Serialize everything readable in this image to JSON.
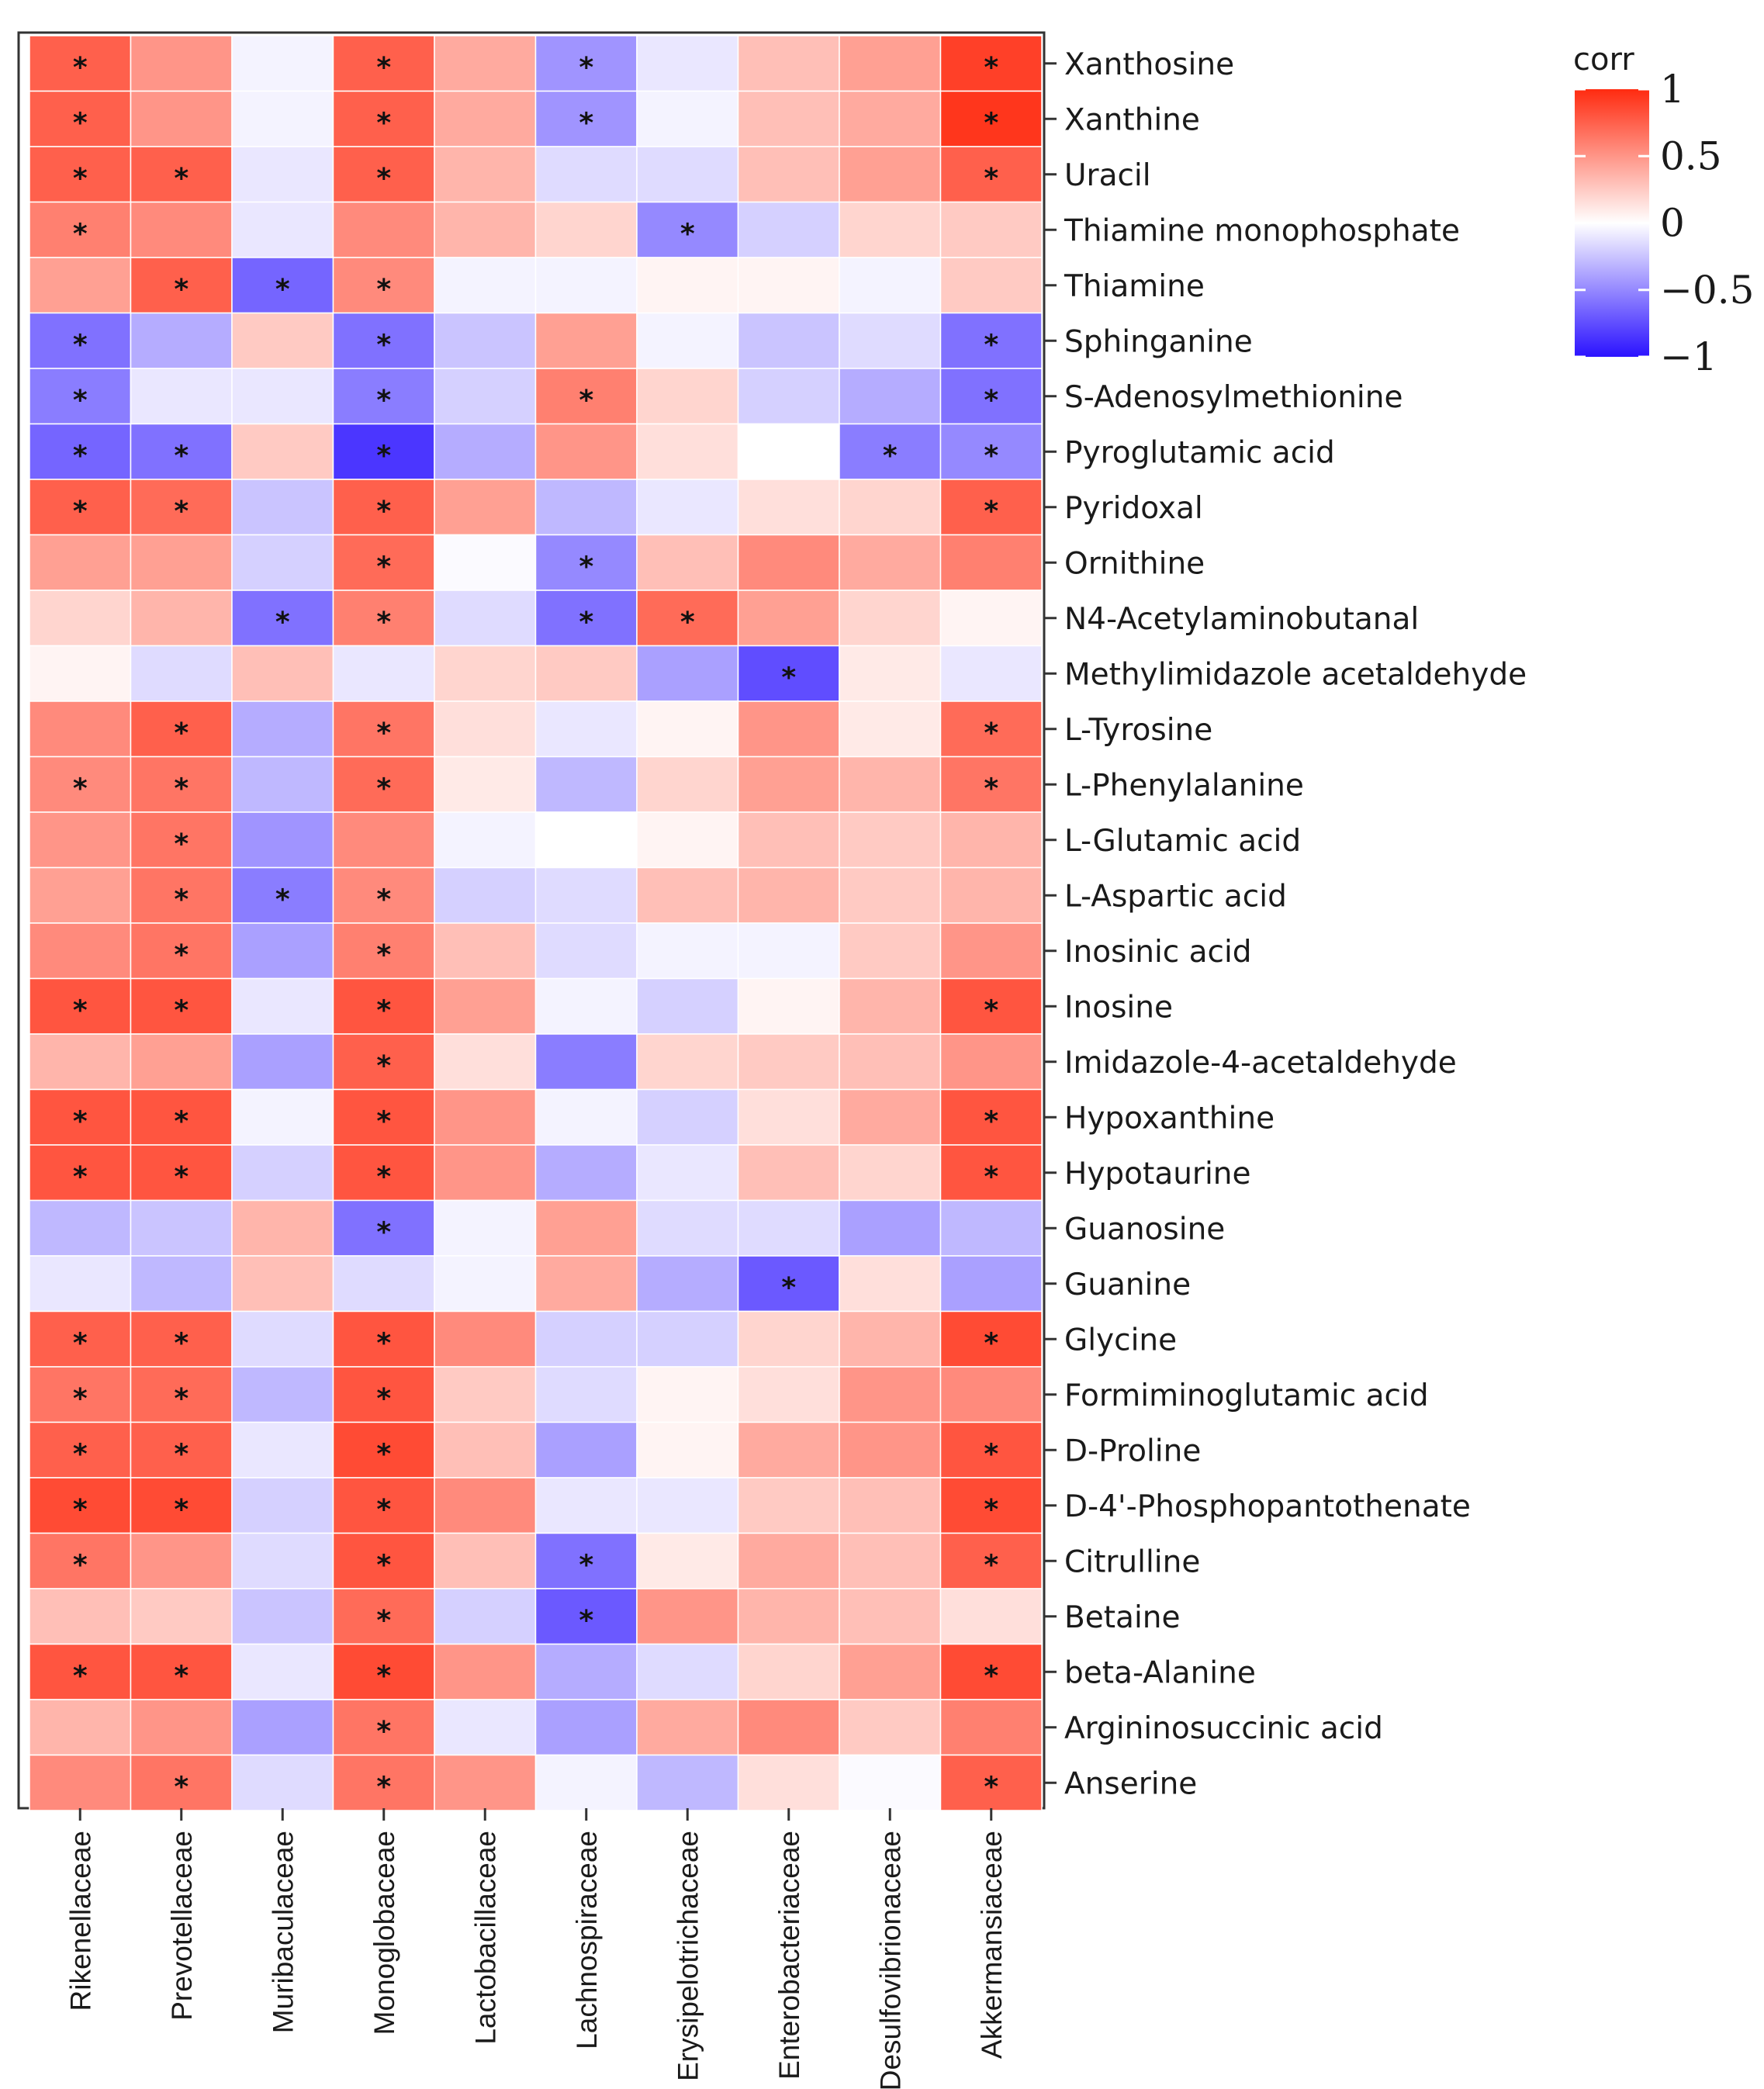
{
  "chart_data": {
    "type": "heatmap",
    "title": "",
    "legend_title": "corr",
    "legend_ticks": [
      "1",
      "0.5",
      "0",
      "−0.5",
      "−1"
    ],
    "legend_tick_values": [
      1,
      0.5,
      0,
      -0.5,
      -1
    ],
    "color_range": [
      -1,
      1
    ],
    "colors": {
      "low": "#2b12ff",
      "mid": "#ffffff",
      "high": "#ff2b10"
    },
    "columns": [
      "Rikenellaceae",
      "Prevotellaceae",
      "Muribaculaceae",
      "Monoglobaceae",
      "Lactobacillaceae",
      "Lachnospiraceae",
      "Erysipelotrichaceae",
      "Enterobacteriaceae",
      "Desulfovibrionaceae",
      "Akkermansiaceae"
    ],
    "rows": [
      {
        "name": "Xanthosine",
        "values": [
          0.75,
          0.5,
          -0.05,
          0.75,
          0.4,
          -0.45,
          -0.1,
          0.3,
          0.45,
          0.9
        ],
        "sig": [
          1,
          0,
          0,
          1,
          0,
          1,
          0,
          0,
          0,
          1
        ]
      },
      {
        "name": "Xanthine",
        "values": [
          0.75,
          0.5,
          -0.05,
          0.75,
          0.4,
          -0.45,
          -0.05,
          0.3,
          0.4,
          0.95
        ],
        "sig": [
          1,
          0,
          0,
          1,
          0,
          1,
          0,
          0,
          0,
          1
        ]
      },
      {
        "name": "Uracil",
        "values": [
          0.75,
          0.75,
          -0.1,
          0.75,
          0.35,
          -0.15,
          -0.15,
          0.3,
          0.45,
          0.75
        ],
        "sig": [
          1,
          1,
          0,
          1,
          0,
          0,
          0,
          0,
          0,
          1
        ]
      },
      {
        "name": "Thiamine monophosphate",
        "values": [
          0.6,
          0.55,
          -0.1,
          0.55,
          0.35,
          0.2,
          -0.5,
          -0.2,
          0.2,
          0.25
        ],
        "sig": [
          1,
          0,
          0,
          0,
          0,
          0,
          1,
          0,
          0,
          0
        ]
      },
      {
        "name": "Thiamine",
        "values": [
          0.45,
          0.75,
          -0.65,
          0.55,
          -0.05,
          -0.05,
          0.05,
          0.05,
          -0.05,
          0.25
        ],
        "sig": [
          0,
          1,
          1,
          1,
          0,
          0,
          0,
          0,
          0,
          0
        ]
      },
      {
        "name": "Sphinganine",
        "values": [
          -0.6,
          -0.35,
          0.25,
          -0.6,
          -0.25,
          0.45,
          -0.05,
          -0.25,
          -0.15,
          -0.6
        ],
        "sig": [
          1,
          0,
          0,
          1,
          0,
          0,
          0,
          0,
          0,
          1
        ]
      },
      {
        "name": "S-Adenosylmethionine",
        "values": [
          -0.55,
          -0.1,
          -0.1,
          -0.55,
          -0.2,
          0.6,
          0.2,
          -0.2,
          -0.35,
          -0.6
        ],
        "sig": [
          1,
          0,
          0,
          1,
          0,
          1,
          0,
          0,
          0,
          1
        ]
      },
      {
        "name": "Pyroglutamic acid",
        "values": [
          -0.65,
          -0.6,
          0.25,
          -0.85,
          -0.35,
          0.5,
          0.15,
          0.0,
          -0.55,
          -0.5
        ],
        "sig": [
          1,
          1,
          0,
          1,
          0,
          0,
          0,
          0,
          1,
          1
        ]
      },
      {
        "name": "Pyridoxal",
        "values": [
          0.75,
          0.7,
          -0.25,
          0.75,
          0.45,
          -0.3,
          -0.1,
          0.15,
          0.2,
          0.75
        ],
        "sig": [
          1,
          1,
          0,
          1,
          0,
          0,
          0,
          0,
          0,
          1
        ]
      },
      {
        "name": "Ornithine",
        "values": [
          0.45,
          0.45,
          -0.2,
          0.7,
          -0.02,
          -0.5,
          0.3,
          0.55,
          0.4,
          0.6
        ],
        "sig": [
          0,
          0,
          0,
          1,
          0,
          1,
          0,
          0,
          0,
          0
        ]
      },
      {
        "name": "N4-Acetylaminobutanal",
        "values": [
          0.2,
          0.35,
          -0.6,
          0.6,
          -0.15,
          -0.6,
          0.7,
          0.45,
          0.2,
          0.05
        ],
        "sig": [
          0,
          0,
          1,
          1,
          0,
          1,
          1,
          0,
          0,
          0
        ]
      },
      {
        "name": "Methylimidazole acetaldehyde",
        "values": [
          0.05,
          -0.15,
          0.3,
          -0.1,
          0.2,
          0.25,
          -0.4,
          -0.75,
          0.1,
          -0.1
        ],
        "sig": [
          0,
          0,
          0,
          0,
          0,
          0,
          0,
          1,
          0,
          0
        ]
      },
      {
        "name": "L-Tyrosine",
        "values": [
          0.55,
          0.75,
          -0.35,
          0.65,
          0.15,
          -0.1,
          0.05,
          0.5,
          0.1,
          0.7
        ],
        "sig": [
          0,
          1,
          0,
          1,
          0,
          0,
          0,
          0,
          0,
          1
        ]
      },
      {
        "name": "L-Phenylalanine",
        "values": [
          0.55,
          0.65,
          -0.3,
          0.7,
          0.1,
          -0.3,
          0.2,
          0.45,
          0.35,
          0.65
        ],
        "sig": [
          1,
          1,
          0,
          1,
          0,
          0,
          0,
          0,
          0,
          1
        ]
      },
      {
        "name": "L-Glutamic acid",
        "values": [
          0.5,
          0.65,
          -0.45,
          0.55,
          -0.05,
          0.0,
          0.05,
          0.3,
          0.25,
          0.35
        ],
        "sig": [
          0,
          1,
          0,
          0,
          0,
          0,
          0,
          0,
          0,
          0
        ]
      },
      {
        "name": "L-Aspartic acid",
        "values": [
          0.45,
          0.65,
          -0.55,
          0.55,
          -0.2,
          -0.15,
          0.3,
          0.35,
          0.25,
          0.35
        ],
        "sig": [
          0,
          1,
          1,
          1,
          0,
          0,
          0,
          0,
          0,
          0
        ]
      },
      {
        "name": "Inosinic acid",
        "values": [
          0.55,
          0.65,
          -0.4,
          0.6,
          0.3,
          -0.15,
          -0.05,
          -0.05,
          0.25,
          0.5
        ],
        "sig": [
          0,
          1,
          0,
          1,
          0,
          0,
          0,
          0,
          0,
          0
        ]
      },
      {
        "name": "Inosine",
        "values": [
          0.8,
          0.8,
          -0.1,
          0.8,
          0.45,
          -0.05,
          -0.2,
          0.05,
          0.35,
          0.8
        ],
        "sig": [
          1,
          1,
          0,
          1,
          0,
          0,
          0,
          0,
          0,
          1
        ]
      },
      {
        "name": "Imidazole-4-acetaldehyde",
        "values": [
          0.35,
          0.45,
          -0.4,
          0.75,
          0.15,
          -0.55,
          0.2,
          0.25,
          0.3,
          0.5
        ],
        "sig": [
          0,
          0,
          0,
          1,
          0,
          0,
          0,
          0,
          0,
          0
        ]
      },
      {
        "name": "Hypoxanthine",
        "values": [
          0.8,
          0.8,
          -0.05,
          0.8,
          0.5,
          -0.05,
          -0.2,
          0.15,
          0.4,
          0.8
        ],
        "sig": [
          1,
          1,
          0,
          1,
          0,
          0,
          0,
          0,
          0,
          1
        ]
      },
      {
        "name": "Hypotaurine",
        "values": [
          0.8,
          0.8,
          -0.2,
          0.8,
          0.5,
          -0.35,
          -0.1,
          0.3,
          0.2,
          0.8
        ],
        "sig": [
          1,
          1,
          0,
          1,
          0,
          0,
          0,
          0,
          0,
          1
        ]
      },
      {
        "name": "Guanosine",
        "values": [
          -0.3,
          -0.25,
          0.35,
          -0.6,
          -0.05,
          0.45,
          -0.15,
          -0.15,
          -0.4,
          -0.3
        ],
        "sig": [
          0,
          0,
          0,
          1,
          0,
          0,
          0,
          0,
          0,
          0
        ]
      },
      {
        "name": "Guanine",
        "values": [
          -0.1,
          -0.3,
          0.3,
          -0.15,
          -0.05,
          0.4,
          -0.35,
          -0.7,
          0.15,
          -0.4
        ],
        "sig": [
          0,
          0,
          0,
          0,
          0,
          0,
          0,
          1,
          0,
          0
        ]
      },
      {
        "name": "Glycine",
        "values": [
          0.75,
          0.75,
          -0.15,
          0.8,
          0.55,
          -0.2,
          -0.2,
          0.2,
          0.35,
          0.85
        ],
        "sig": [
          1,
          1,
          0,
          1,
          0,
          0,
          0,
          0,
          0,
          1
        ]
      },
      {
        "name": "Formiminoglutamic acid",
        "values": [
          0.65,
          0.7,
          -0.3,
          0.8,
          0.25,
          -0.15,
          0.05,
          0.15,
          0.5,
          0.55
        ],
        "sig": [
          1,
          1,
          0,
          1,
          0,
          0,
          0,
          0,
          0,
          0
        ]
      },
      {
        "name": "D-Proline",
        "values": [
          0.75,
          0.75,
          -0.1,
          0.85,
          0.3,
          -0.4,
          0.05,
          0.4,
          0.5,
          0.8
        ],
        "sig": [
          1,
          1,
          0,
          1,
          0,
          0,
          0,
          0,
          0,
          1
        ]
      },
      {
        "name": "D-4'-Phosphopantothenate",
        "values": [
          0.85,
          0.85,
          -0.2,
          0.8,
          0.55,
          -0.1,
          -0.1,
          0.25,
          0.3,
          0.85
        ],
        "sig": [
          1,
          1,
          0,
          1,
          0,
          0,
          0,
          0,
          0,
          1
        ]
      },
      {
        "name": "Citrulline",
        "values": [
          0.65,
          0.5,
          -0.15,
          0.8,
          0.3,
          -0.6,
          0.1,
          0.4,
          0.3,
          0.75
        ],
        "sig": [
          1,
          0,
          0,
          1,
          0,
          1,
          0,
          0,
          0,
          1
        ]
      },
      {
        "name": "Betaine",
        "values": [
          0.3,
          0.25,
          -0.25,
          0.7,
          -0.2,
          -0.7,
          0.5,
          0.35,
          0.3,
          0.15
        ],
        "sig": [
          0,
          0,
          0,
          1,
          0,
          1,
          0,
          0,
          0,
          0
        ]
      },
      {
        "name": "beta-Alanine",
        "values": [
          0.8,
          0.8,
          -0.1,
          0.85,
          0.5,
          -0.35,
          -0.15,
          0.2,
          0.45,
          0.85
        ],
        "sig": [
          1,
          1,
          0,
          1,
          0,
          0,
          0,
          0,
          0,
          1
        ]
      },
      {
        "name": "Argininosuccinic acid",
        "values": [
          0.35,
          0.5,
          -0.4,
          0.65,
          -0.1,
          -0.4,
          0.4,
          0.55,
          0.25,
          0.6
        ],
        "sig": [
          0,
          0,
          0,
          1,
          0,
          0,
          0,
          0,
          0,
          0
        ]
      },
      {
        "name": "Anserine",
        "values": [
          0.55,
          0.65,
          -0.15,
          0.65,
          0.5,
          -0.05,
          -0.3,
          0.15,
          -0.02,
          0.75
        ],
        "sig": [
          0,
          1,
          0,
          1,
          0,
          0,
          0,
          0,
          0,
          1
        ]
      }
    ]
  },
  "sig_marker": "*"
}
